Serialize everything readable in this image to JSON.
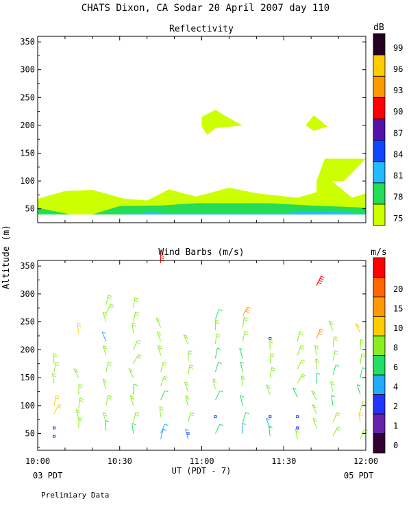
{
  "header": {
    "title": "CHATS Dixon, CA  Sodar  20 April 2007  day 110"
  },
  "shared": {
    "y_axis_label": "Altitude (m)",
    "x_axis_label": "UT  (PDT - 7)",
    "x_left_sub": "03 PDT",
    "x_right_sub": "05 PDT",
    "footer_note": "Prelimiary Data"
  },
  "chart_data": [
    {
      "type": "area",
      "title": "Reflectivity",
      "xlabel": "UT  (PDT - 7)",
      "ylabel": "Altitude (m)",
      "x_unit": "UT time",
      "xlim": [
        "10:00",
        "12:00"
      ],
      "ylim": [
        25,
        360
      ],
      "x_ticks": [
        "10:00",
        "10:30",
        "11:00",
        "11:30",
        "12:00"
      ],
      "y_ticks": [
        50,
        100,
        150,
        200,
        250,
        300,
        350
      ],
      "colorbar": {
        "title": "dB",
        "levels": [
          75,
          78,
          81,
          84,
          87,
          90,
          93,
          96,
          99
        ],
        "colors": [
          "#ccff00",
          "#22dd55",
          "#22bbff",
          "#1144ff",
          "#5511aa",
          "#ff0000",
          "#ff9900",
          "#ffcc00",
          "#220022"
        ]
      },
      "regions": [
        {
          "level": 75,
          "points": [
            [
              "10:00",
              68
            ],
            [
              "10:10",
              82
            ],
            [
              "10:20",
              84
            ],
            [
              "10:32",
              68
            ],
            [
              "10:40",
              65
            ],
            [
              "10:48",
              85
            ],
            [
              "10:58",
              72
            ],
            [
              "11:10",
              88
            ],
            [
              "11:20",
              78
            ],
            [
              "11:35",
              70
            ],
            [
              "11:42",
              80
            ],
            [
              "11:42",
              100
            ],
            [
              "11:45",
              140
            ],
            [
              "12:00",
              140
            ],
            [
              "11:52",
              100
            ],
            [
              "11:45",
              100
            ],
            [
              "11:45",
              110
            ],
            [
              "11:55",
              70
            ],
            [
              "12:00",
              78
            ],
            [
              "12:00",
              40
            ],
            [
              "10:00",
              40
            ]
          ]
        },
        {
          "level": 75,
          "points": [
            [
              "11:00",
              215
            ],
            [
              "11:05",
              228
            ],
            [
              "11:10",
              213
            ],
            [
              "11:15",
              200
            ],
            [
              "11:05",
              195
            ],
            [
              "11:02",
              183
            ],
            [
              "11:00",
              198
            ]
          ]
        },
        {
          "level": 75,
          "points": [
            [
              "11:38",
              200
            ],
            [
              "11:41",
              218
            ],
            [
              "11:46",
              198
            ],
            [
              "11:41",
              190
            ]
          ]
        },
        {
          "level": 78,
          "points": [
            [
              "10:00",
              52
            ],
            [
              "10:12",
              40
            ],
            [
              "10:20",
              40
            ],
            [
              "10:30",
              55
            ],
            [
              "10:45",
              56
            ],
            [
              "10:58",
              60
            ],
            [
              "11:10",
              60
            ],
            [
              "11:25",
              60
            ],
            [
              "11:40",
              56
            ],
            [
              "11:55",
              53
            ],
            [
              "12:00",
              52
            ],
            [
              "12:00",
              40
            ],
            [
              "10:00",
              40
            ]
          ]
        },
        {
          "level": 81,
          "points": [
            [
              "10:30",
              40
            ],
            [
              "10:42",
              44
            ],
            [
              "10:52",
              41
            ],
            [
              "11:28",
              41
            ],
            [
              "11:38",
              46
            ],
            [
              "11:52",
              44
            ],
            [
              "12:00",
              41
            ],
            [
              "12:00",
              40
            ],
            [
              "10:30",
              40
            ]
          ]
        }
      ]
    },
    {
      "type": "scatter",
      "title": "Wind Barbs (m/s)",
      "xlabel": "UT  (PDT - 7)",
      "ylabel": "Altitude (m)",
      "xlim": [
        "10:00",
        "12:00"
      ],
      "ylim": [
        20,
        360
      ],
      "x_ticks": [
        "10:00",
        "10:30",
        "11:00",
        "11:30",
        "12:00"
      ],
      "y_ticks": [
        50,
        100,
        150,
        200,
        250,
        300,
        350
      ],
      "colorbar": {
        "title": "m/s",
        "levels": [
          0,
          1,
          2,
          4,
          6,
          8,
          10,
          15,
          20
        ],
        "colors": [
          "#330033",
          "#6622aa",
          "#2233ff",
          "#22aaff",
          "#22dd66",
          "#88ee22",
          "#ffcc00",
          "#ff9900",
          "#ff6600",
          "#ff0000"
        ]
      },
      "profiles": [
        {
          "time": "10:06",
          "barbs": [
            [
              175,
              6
            ],
            [
              160,
              6
            ],
            [
              140,
              6
            ],
            [
              100,
              8
            ],
            [
              85,
              8
            ],
            [
              60,
              1
            ],
            [
              45,
              1
            ]
          ]
        },
        {
          "time": "10:15",
          "barbs": [
            [
              230,
              8
            ],
            [
              150,
              6
            ],
            [
              120,
              6
            ],
            [
              95,
              6
            ],
            [
              75,
              6
            ],
            [
              60,
              6
            ]
          ]
        },
        {
          "time": "10:25",
          "barbs": [
            [
              280,
              6
            ],
            [
              265,
              6
            ],
            [
              250,
              6
            ],
            [
              215,
              2
            ],
            [
              190,
              6
            ],
            [
              160,
              6
            ],
            [
              130,
              6
            ],
            [
              100,
              6
            ],
            [
              70,
              6
            ],
            [
              55,
              4
            ]
          ]
        },
        {
          "time": "10:35",
          "barbs": [
            [
              275,
              6
            ],
            [
              250,
              6
            ],
            [
              230,
              6
            ],
            [
              200,
              6
            ],
            [
              175,
              6
            ],
            [
              150,
              6
            ],
            [
              120,
              4
            ],
            [
              100,
              6
            ],
            [
              70,
              6
            ],
            [
              50,
              4
            ]
          ]
        },
        {
          "time": "10:45",
          "barbs": [
            [
              355,
              20
            ],
            [
              240,
              6
            ],
            [
              215,
              6
            ],
            [
              190,
              6
            ],
            [
              160,
              6
            ],
            [
              135,
              6
            ],
            [
              110,
              4
            ],
            [
              80,
              6
            ],
            [
              50,
              2
            ],
            [
              40,
              2
            ]
          ]
        },
        {
          "time": "10:55",
          "barbs": [
            [
              210,
              6
            ],
            [
              180,
              6
            ],
            [
              155,
              6
            ],
            [
              125,
              6
            ],
            [
              100,
              6
            ],
            [
              70,
              6
            ],
            [
              50,
              1
            ],
            [
              40,
              2
            ]
          ]
        },
        {
          "time": "11:05",
          "barbs": [
            [
              255,
              4
            ],
            [
              235,
              6
            ],
            [
              210,
              6
            ],
            [
              185,
              4
            ],
            [
              160,
              4
            ],
            [
              130,
              6
            ],
            [
              110,
              4
            ],
            [
              80,
              1
            ],
            [
              50,
              4
            ]
          ]
        },
        {
          "time": "11:15",
          "barbs": [
            [
              260,
              10
            ],
            [
              240,
              6
            ],
            [
              215,
              6
            ],
            [
              185,
              4
            ],
            [
              160,
              4
            ],
            [
              135,
              6
            ],
            [
              100,
              4
            ],
            [
              70,
              4
            ],
            [
              50,
              2
            ]
          ]
        },
        {
          "time": "11:25",
          "barbs": [
            [
              220,
              1
            ],
            [
              200,
              6
            ],
            [
              175,
              6
            ],
            [
              150,
              6
            ],
            [
              120,
              6
            ],
            [
              80,
              1
            ],
            [
              60,
              2
            ],
            [
              45,
              4
            ]
          ]
        },
        {
          "time": "11:35",
          "barbs": [
            [
              215,
              6
            ],
            [
              190,
              6
            ],
            [
              165,
              6
            ],
            [
              140,
              6
            ],
            [
              115,
              4
            ],
            [
              80,
              1
            ],
            [
              60,
              1
            ],
            [
              40,
              6
            ]
          ]
        },
        {
          "time": "11:42",
          "barbs": [
            [
              315,
              20
            ],
            [
              220,
              10
            ],
            [
              190,
              6
            ],
            [
              165,
              6
            ],
            [
              140,
              4
            ],
            [
              110,
              6
            ],
            [
              85,
              6
            ],
            [
              60,
              6
            ]
          ]
        },
        {
          "time": "11:48",
          "barbs": [
            [
              235,
              6
            ],
            [
              205,
              6
            ],
            [
              180,
              6
            ],
            [
              155,
              4
            ],
            [
              125,
              6
            ],
            [
              100,
              4
            ],
            [
              70,
              6
            ],
            [
              45,
              6
            ]
          ]
        },
        {
          "time": "11:58",
          "barbs": [
            [
              230,
              8
            ],
            [
              200,
              6
            ],
            [
              175,
              6
            ],
            [
              150,
              4
            ],
            [
              120,
              4
            ],
            [
              90,
              6
            ],
            [
              70,
              8
            ],
            [
              40,
              6
            ]
          ]
        }
      ]
    }
  ]
}
